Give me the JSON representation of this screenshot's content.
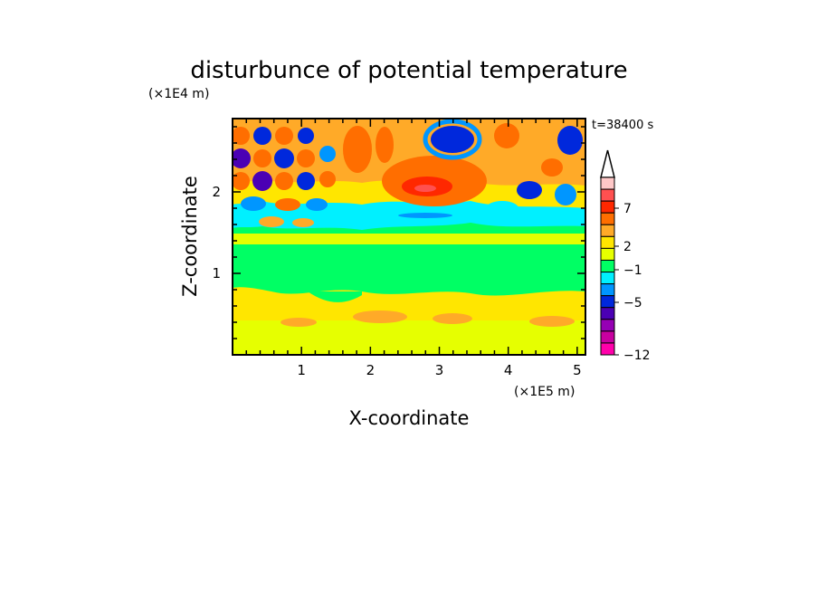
{
  "chart_data": {
    "type": "heatmap",
    "title": "disturbunce of potential temperature",
    "time_label": "t=38400 s",
    "xlabel": "X-coordinate",
    "ylabel": "Z-coordinate",
    "x_unit": "(×1E5 m)",
    "y_unit": "(×1E4 m)",
    "xlim": [
      0,
      5.12
    ],
    "ylim": [
      0,
      2.9
    ],
    "x_ticks": [
      "1",
      "2",
      "3",
      "4",
      "5"
    ],
    "y_ticks": [
      "1",
      "2"
    ],
    "colorbar": {
      "extend": "max",
      "labels": [
        "7",
        "2",
        "−1",
        "−5",
        "−12"
      ],
      "colors": [
        "#ffc8c8",
        "#ff5050",
        "#ff2800",
        "#ff6e00",
        "#ffaa28",
        "#ffe600",
        "#e6ff00",
        "#00ff64",
        "#00f0ff",
        "#0096ff",
        "#0028dc",
        "#4b00b4",
        "#9600b4",
        "#c800a0",
        "#ff00aa"
      ]
    }
  }
}
